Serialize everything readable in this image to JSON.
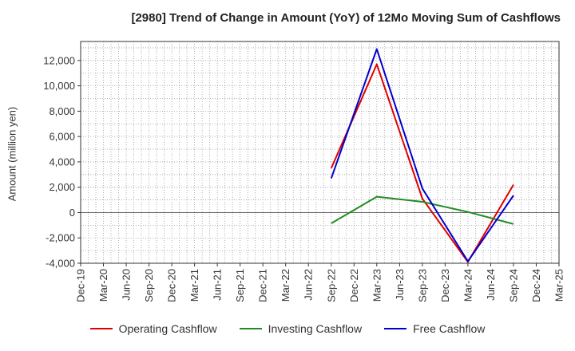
{
  "chart_data": {
    "type": "line",
    "title": "[2980]  Trend of Change in Amount (YoY) of 12Mo Moving Sum of Cashflows",
    "xlabel": "",
    "ylabel": "Amount (million yen)",
    "ylim": [
      -4000,
      13500
    ],
    "yticks": [
      -4000,
      -2000,
      0,
      2000,
      4000,
      6000,
      8000,
      10000,
      12000
    ],
    "ytick_labels": [
      "-4,000",
      "-2,000",
      "0",
      "2,000",
      "4,000",
      "6,000",
      "8,000",
      "10,000",
      "12,000"
    ],
    "categories": [
      "Dec-19",
      "Mar-20",
      "Jun-20",
      "Sep-20",
      "Dec-20",
      "Mar-21",
      "Jun-21",
      "Sep-21",
      "Dec-21",
      "Mar-22",
      "Jun-22",
      "Sep-22",
      "Dec-22",
      "Mar-23",
      "Jun-23",
      "Sep-23",
      "Dec-23",
      "Mar-24",
      "Jun-24",
      "Sep-24",
      "Dec-24",
      "Mar-25"
    ],
    "grid": true,
    "legend_position": "bottom",
    "series": [
      {
        "name": "Operating Cashflow",
        "color": "#e00000",
        "x": [
          "Sep-22",
          "Mar-23",
          "Sep-23",
          "Mar-24",
          "Sep-24"
        ],
        "values": [
          3500,
          11700,
          1100,
          -3900,
          2200
        ]
      },
      {
        "name": "Investing Cashflow",
        "color": "#228b22",
        "x": [
          "Sep-22",
          "Mar-23",
          "Sep-23",
          "Mar-24",
          "Sep-24"
        ],
        "values": [
          -850,
          1250,
          850,
          50,
          -900
        ]
      },
      {
        "name": "Free Cashflow",
        "color": "#0000cc",
        "x": [
          "Sep-22",
          "Mar-23",
          "Sep-23",
          "Mar-24",
          "Sep-24"
        ],
        "values": [
          2700,
          12900,
          1900,
          -3850,
          1350
        ]
      }
    ]
  }
}
